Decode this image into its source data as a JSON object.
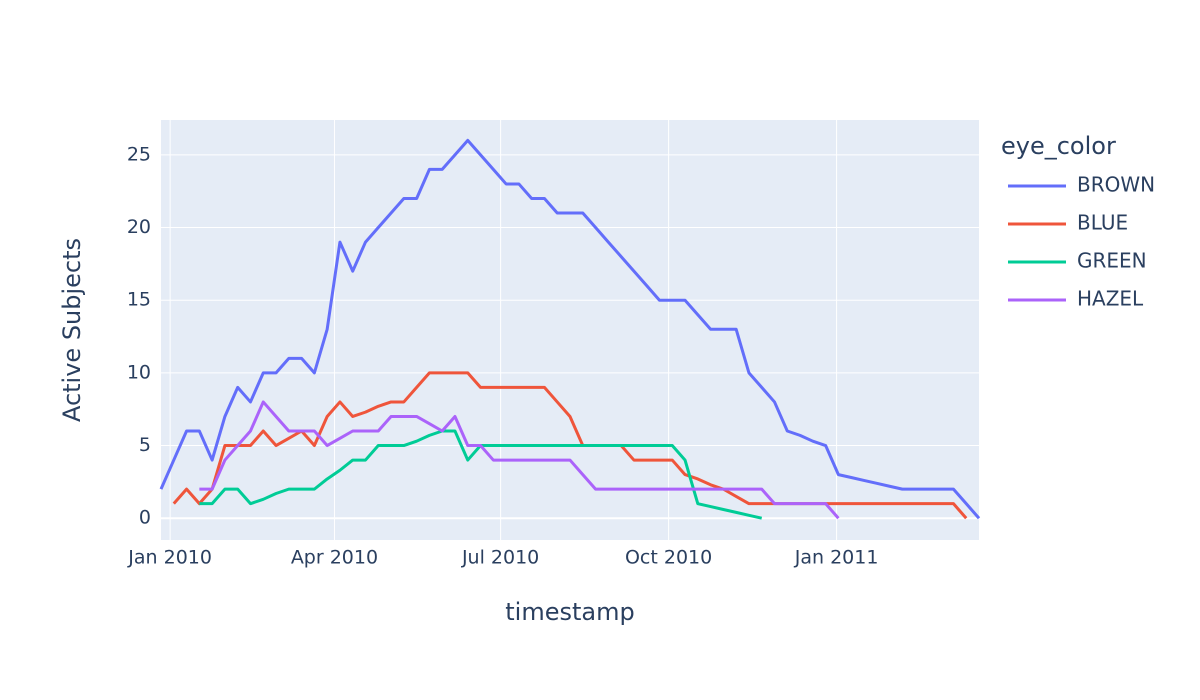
{
  "chart_data": {
    "type": "line",
    "x_title": "timestamp",
    "y_title": "Active Subjects",
    "legend_title": "eye_color",
    "legend": "right",
    "grid": true,
    "xlim": [
      "2009-12-27",
      "2011-03-20"
    ],
    "ylim": [
      -1.5,
      27.4
    ],
    "xticks": [
      {
        "value": "2010-01-01",
        "label": "Jan 2010"
      },
      {
        "value": "2010-04-01",
        "label": "Apr 2010"
      },
      {
        "value": "2010-07-01",
        "label": "Jul 2010"
      },
      {
        "value": "2010-10-01",
        "label": "Oct 2010"
      },
      {
        "value": "2011-01-01",
        "label": "Jan 2011"
      }
    ],
    "yticks": [
      0,
      5,
      10,
      15,
      20,
      25
    ],
    "x": [
      "2009-12-27",
      "2010-01-03",
      "2010-01-10",
      "2010-01-17",
      "2010-01-24",
      "2010-01-31",
      "2010-02-07",
      "2010-02-14",
      "2010-02-21",
      "2010-02-28",
      "2010-03-07",
      "2010-03-14",
      "2010-03-21",
      "2010-03-28",
      "2010-04-04",
      "2010-04-11",
      "2010-04-18",
      "2010-04-25",
      "2010-05-02",
      "2010-05-09",
      "2010-05-16",
      "2010-05-23",
      "2010-05-30",
      "2010-06-06",
      "2010-06-13",
      "2010-06-20",
      "2010-06-27",
      "2010-07-04",
      "2010-07-11",
      "2010-07-18",
      "2010-07-25",
      "2010-08-01",
      "2010-08-08",
      "2010-08-15",
      "2010-08-22",
      "2010-08-29",
      "2010-09-05",
      "2010-09-12",
      "2010-09-19",
      "2010-09-26",
      "2010-10-03",
      "2010-10-10",
      "2010-10-17",
      "2010-10-24",
      "2010-10-31",
      "2010-11-07",
      "2010-11-14",
      "2010-11-21",
      "2010-11-28",
      "2010-12-05",
      "2010-12-12",
      "2010-12-19",
      "2010-12-26",
      "2011-01-02",
      "2011-01-09",
      "2011-01-16",
      "2011-01-23",
      "2011-01-30",
      "2011-02-06",
      "2011-02-13",
      "2011-02-20",
      "2011-02-27",
      "2011-03-06",
      "2011-03-13",
      "2011-03-20"
    ],
    "series": [
      {
        "name": "BROWN",
        "color": "#636efa",
        "values": [
          2,
          4,
          6,
          6,
          4,
          7,
          9,
          8,
          10,
          10,
          11,
          11,
          10,
          13,
          19,
          17,
          19,
          20,
          21,
          22,
          22,
          24,
          24,
          25,
          26,
          25,
          24,
          23,
          23,
          22,
          22,
          21,
          21,
          21,
          20,
          19,
          18,
          17,
          16,
          15,
          15,
          15,
          14,
          13,
          13,
          13,
          10,
          9,
          8,
          6,
          5.7,
          5.3,
          5,
          3,
          2.8,
          2.6,
          2.4,
          2.2,
          2,
          2,
          2,
          2,
          2,
          1,
          0
        ]
      },
      {
        "name": "BLUE",
        "color": "#ef553b",
        "values": [
          null,
          1,
          2,
          1,
          2,
          5,
          5,
          5,
          6,
          5,
          5.5,
          6,
          5,
          7,
          8,
          7,
          7.3,
          7.7,
          8,
          8,
          9,
          10,
          10,
          10,
          10,
          9,
          9,
          9,
          9,
          9,
          9,
          8,
          7,
          5,
          5,
          5,
          5,
          4,
          4,
          4,
          4,
          3,
          2.7,
          2.3,
          2,
          1.5,
          1,
          1,
          1,
          1,
          1,
          1,
          1,
          1,
          1,
          1,
          1,
          1,
          1,
          1,
          1,
          1,
          1,
          0,
          null
        ]
      },
      {
        "name": "GREEN",
        "color": "#00cc96",
        "values": [
          null,
          null,
          null,
          1,
          1,
          2,
          2,
          1,
          1.3,
          1.7,
          2,
          2,
          2,
          2.7,
          3.3,
          4,
          4,
          5,
          5,
          5,
          5.3,
          5.7,
          6,
          6,
          4,
          5,
          5,
          5,
          5,
          5,
          5,
          5,
          5,
          5,
          5,
          5,
          5,
          5,
          5,
          5,
          5,
          4,
          1,
          0.8,
          0.6,
          0.4,
          0.2,
          0,
          null,
          null,
          null,
          null,
          null,
          null,
          null,
          null,
          null,
          null,
          null,
          null,
          null,
          null,
          null,
          null,
          null
        ]
      },
      {
        "name": "HAZEL",
        "color": "#ab63fa",
        "values": [
          null,
          null,
          null,
          2,
          2,
          4,
          5,
          6,
          8,
          7,
          6,
          6,
          6,
          5,
          5.5,
          6,
          6,
          6,
          7,
          7,
          7,
          6.5,
          6,
          7,
          5,
          5,
          4,
          4,
          4,
          4,
          4,
          4,
          4,
          3,
          2,
          2,
          2,
          2,
          2,
          2,
          2,
          2,
          2,
          2,
          2,
          2,
          2,
          2,
          1,
          1,
          1,
          1,
          1,
          0,
          null,
          null,
          null,
          null,
          null,
          null,
          null,
          null,
          null,
          null,
          null
        ]
      }
    ]
  }
}
